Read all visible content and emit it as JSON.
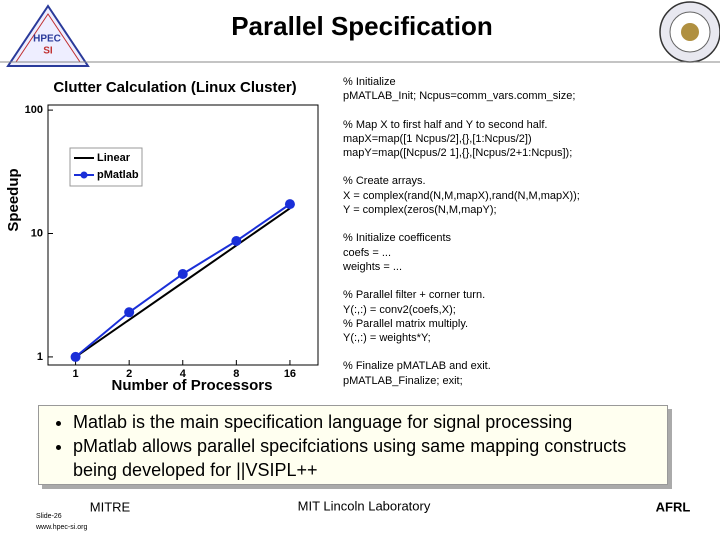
{
  "header": {
    "title": "Parallel Specification",
    "logo_text": [
      "HPEC",
      "SI"
    ]
  },
  "chart_data": {
    "type": "line",
    "title": "Clutter Calculation (Linux Cluster)",
    "x_label": "Number of Processors",
    "y_label": "Speedup",
    "x": [
      1,
      2,
      4,
      8,
      16
    ],
    "series": [
      {
        "name": "Linear",
        "color": "#000000",
        "values": [
          1,
          2,
          4,
          8,
          16
        ]
      },
      {
        "name": "pMatlab",
        "color": "#1a2fd8",
        "marker": "circle",
        "values": [
          1,
          2.3,
          4.7,
          8.7,
          17.3
        ]
      }
    ],
    "xlim": [
      0.7,
      23
    ],
    "ylim": [
      0.86,
      110
    ],
    "xticks": [
      1,
      2,
      4,
      8,
      16
    ],
    "yticks": [
      1,
      10,
      100
    ],
    "xscale": "log",
    "yscale": "log",
    "legend": "upper left",
    "grid": false
  },
  "code": [
    [
      "% Initialize",
      "pMATLAB_Init; Ncpus=comm_vars.comm_size;"
    ],
    [
      "% Map X to first half and Y to second half.",
      "mapX=map([1 Ncpus/2],{},[1:Ncpus/2])",
      "mapY=map([Ncpus/2 1],{},[Ncpus/2+1:Ncpus]);"
    ],
    [
      "% Create arrays.",
      "X = complex(rand(N,M,mapX),rand(N,M,mapX));",
      "Y = complex(zeros(N,M,mapY);"
    ],
    [
      "% Initialize coefficents",
      "coefs = ...",
      "weights = ..."
    ],
    [
      "% Parallel filter + corner turn.",
      "Y(:,:) = conv2(coefs,X);",
      "% Parallel matrix multiply.",
      "Y(:,:) = weights*Y;"
    ],
    [
      "% Finalize pMATLAB and exit.",
      "pMATLAB_Finalize; exit;"
    ]
  ],
  "bullets": [
    "Matlab is the main specification language for signal processing",
    "pMatlab allows parallel specifciations using same mapping constructs being developed for ||VSIPL++"
  ],
  "footer": {
    "left": "MITRE",
    "center": "MIT Lincoln Laboratory",
    "right": "AFRL",
    "slide": "Slide-26",
    "url": "www.hpec-si.org"
  }
}
